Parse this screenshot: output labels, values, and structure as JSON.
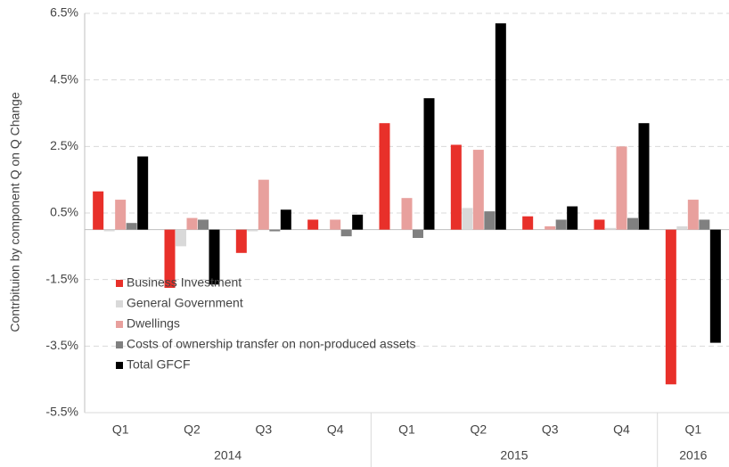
{
  "chart_data": {
    "type": "bar",
    "y_axis_label": "Contrbituion by component  Q on Q Change",
    "categories": [
      "Q1",
      "Q2",
      "Q3",
      "Q4",
      "Q1",
      "Q2",
      "Q3",
      "Q4",
      "Q1"
    ],
    "x_groups": [
      {
        "label": "2014",
        "count": 4
      },
      {
        "label": "2015",
        "count": 4
      },
      {
        "label": "2016",
        "count": 1
      }
    ],
    "series": [
      {
        "name": "Business Investment",
        "color": "#e8302a",
        "values": [
          1.15,
          -1.75,
          -0.7,
          0.3,
          3.2,
          2.55,
          0.4,
          0.3,
          -4.65
        ]
      },
      {
        "name": "General Government",
        "color": "#d9d9d9",
        "values": [
          -0.05,
          -0.5,
          -0.05,
          0,
          0,
          0.65,
          0,
          0.05,
          0.1
        ]
      },
      {
        "name": "Dwellings",
        "color": "#e8a09d",
        "values": [
          0.9,
          0.35,
          1.5,
          0.3,
          0.95,
          2.4,
          0.1,
          2.5,
          0.9
        ]
      },
      {
        "name": "Costs of ownership transfer on non-produced assets",
        "color": "#808080",
        "values": [
          0.2,
          0.3,
          -0.05,
          -0.2,
          -0.25,
          0.55,
          0.3,
          0.35,
          0.3
        ]
      },
      {
        "name": "Total GFCF",
        "color": "#000000",
        "values": [
          2.2,
          -1.65,
          0.6,
          0.45,
          3.95,
          6.2,
          0.7,
          3.2,
          -3.4
        ]
      }
    ],
    "ylim": [
      -5.5,
      6.5
    ],
    "yticks": [
      {
        "value": -5.5,
        "label": "-5.5%"
      },
      {
        "value": -3.5,
        "label": "-3.5%"
      },
      {
        "value": -1.5,
        "label": "-1.5%"
      },
      {
        "value": 0.5,
        "label": "0.5%"
      },
      {
        "value": 2.5,
        "label": "2.5%"
      },
      {
        "value": 4.5,
        "label": "4.5%"
      },
      {
        "value": 6.5,
        "label": "6.5%"
      }
    ],
    "grid": true,
    "legend": "lower-left"
  }
}
